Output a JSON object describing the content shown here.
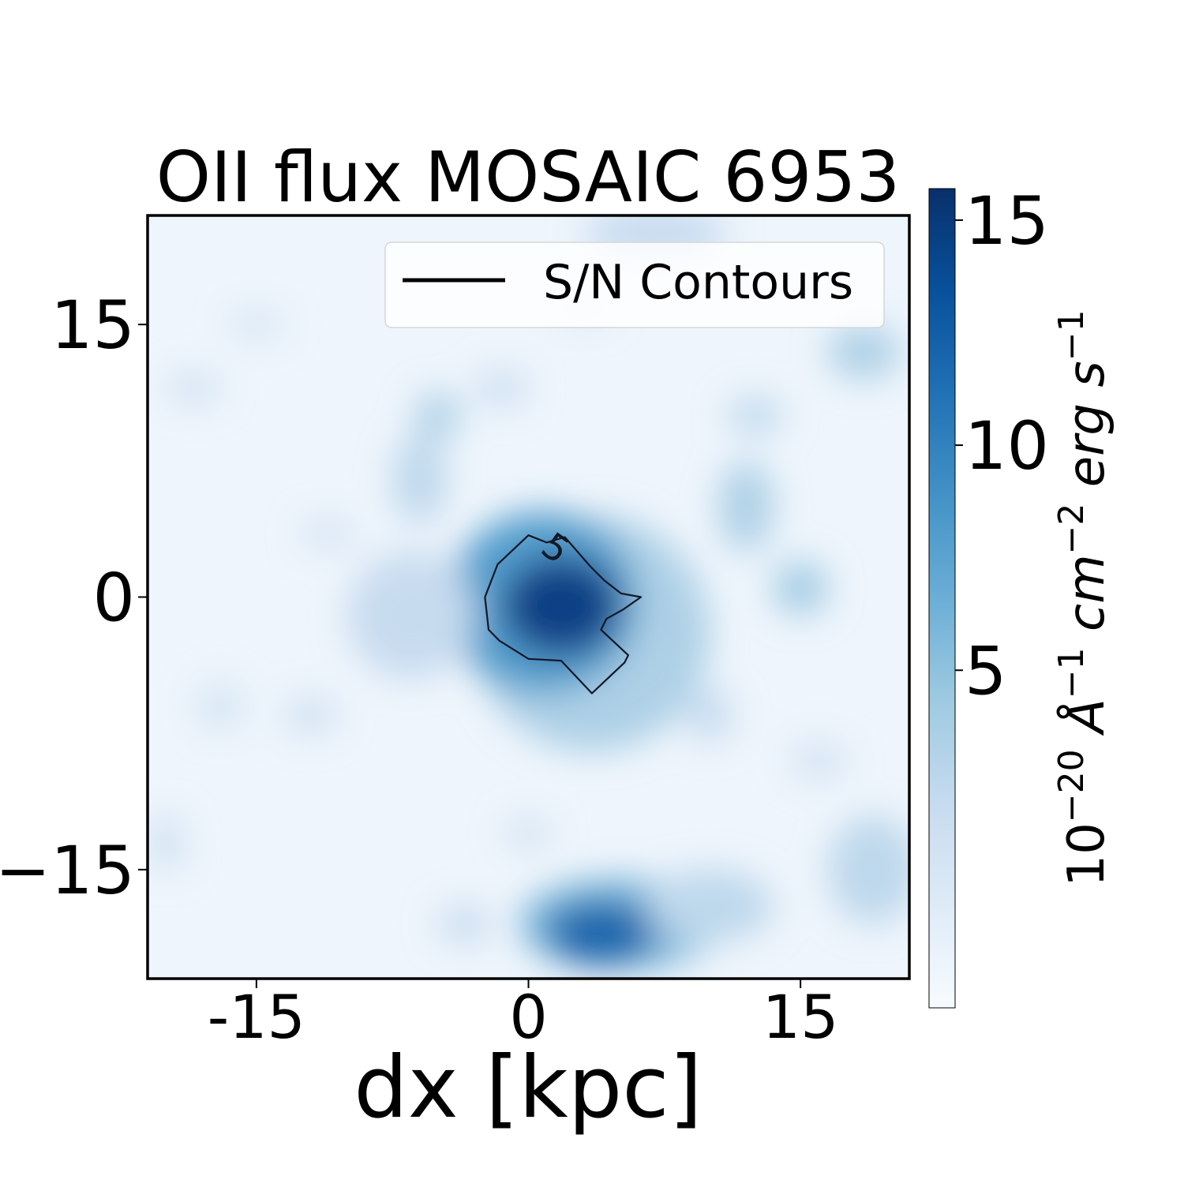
{
  "chart_data": {
    "type": "heatmap",
    "title": "OII flux MOSAIC 6953",
    "xlabel": "dx [kpc]",
    "ylabel": "",
    "xlim": [
      -21,
      21
    ],
    "ylim": [
      -21,
      21
    ],
    "xticks": [
      {
        "value": -15,
        "label": "-15"
      },
      {
        "value": 0,
        "label": "0"
      },
      {
        "value": 15,
        "label": "15"
      }
    ],
    "yticks": [
      {
        "value": 15,
        "label": "15"
      },
      {
        "value": 0,
        "label": "0"
      },
      {
        "value": -15,
        "label": "−15"
      }
    ],
    "colormap": "Blues",
    "colors": {
      "low": "#f7fbff",
      "mid": "#6baed6",
      "high": "#08306b"
    },
    "colorbar": {
      "label_parts": {
        "base": "10",
        "exp": "−20",
        "units": [
          {
            "text": "Å",
            "exp": "−1"
          },
          {
            "text": "cm",
            "exp": "−2"
          },
          {
            "text": "erg",
            "exp": ""
          },
          {
            "text": "s",
            "exp": "−1"
          }
        ]
      },
      "vmin": -2.5,
      "vmax": 15.7,
      "ticks": [
        {
          "value": 5,
          "label": "5"
        },
        {
          "value": 10,
          "label": "10"
        },
        {
          "value": 15,
          "label": "15"
        }
      ]
    },
    "legend": {
      "position": "upper-right",
      "entries": [
        {
          "label": "S/N Contours",
          "color": "#000000"
        }
      ]
    },
    "contours": [
      {
        "level_label": "5",
        "label_at": [
          1.5,
          2.7
        ],
        "points": [
          [
            0,
            3.4
          ],
          [
            -1.7,
            1.8
          ],
          [
            -2.4,
            0
          ],
          [
            -2.2,
            -1.8
          ],
          [
            -1.6,
            -2.4
          ],
          [
            0,
            -3.4
          ],
          [
            1.8,
            -3.5
          ],
          [
            3.5,
            -5.3
          ],
          [
            5.3,
            -3.6
          ],
          [
            5.5,
            -3.2
          ],
          [
            4,
            -1.8
          ],
          [
            4.3,
            -1.2
          ],
          [
            5.2,
            -0.7
          ],
          [
            6.2,
            0
          ],
          [
            5.1,
            0.2
          ],
          [
            4.2,
            0.9
          ],
          [
            3.4,
            1.7
          ],
          [
            2.7,
            2.5
          ],
          [
            2,
            3.3
          ],
          [
            1,
            3
          ]
        ]
      }
    ],
    "blobs": [
      {
        "x": 1.8,
        "y": -0.5,
        "w": 6.5,
        "h": 5.5,
        "value": 14.5
      },
      {
        "x": 0.8,
        "y": -0.3,
        "w": 10.5,
        "h": 10,
        "value": 8.0
      },
      {
        "x": 3.5,
        "y": -2.0,
        "w": 13,
        "h": 13,
        "value": 3.5
      },
      {
        "x": -6.5,
        "y": -1.0,
        "w": 7,
        "h": 7,
        "value": 2.0
      },
      {
        "x": 4.0,
        "y": -18.5,
        "w": 6,
        "h": 3.5,
        "value": 12.0
      },
      {
        "x": 5.0,
        "y": -18.0,
        "w": 11,
        "h": 5,
        "value": 6.0
      },
      {
        "x": 10.0,
        "y": -17.0,
        "w": 7,
        "h": 4,
        "value": 2.5
      },
      {
        "x": -5.0,
        "y": 10.0,
        "w": 2.5,
        "h": 2.5,
        "value": 3.5
      },
      {
        "x": -6.0,
        "y": 6.5,
        "w": 3,
        "h": 5,
        "value": 2.5
      },
      {
        "x": 12.0,
        "y": 5.0,
        "w": 3,
        "h": 5,
        "value": 3.5
      },
      {
        "x": 15.0,
        "y": 0.5,
        "w": 3,
        "h": 3,
        "value": 4.0
      },
      {
        "x": 12.5,
        "y": 10.0,
        "w": 3,
        "h": 2,
        "value": 2.5
      },
      {
        "x": 18.5,
        "y": 13.5,
        "w": 4,
        "h": 3,
        "value": 3.5
      },
      {
        "x": 19.0,
        "y": -15.0,
        "w": 5,
        "h": 6,
        "value": 2.5
      },
      {
        "x": 7.0,
        "y": 20.0,
        "w": 8,
        "h": 3,
        "value": 2.0
      },
      {
        "x": -1.5,
        "y": 11.5,
        "w": 3,
        "h": 2,
        "value": 1.5
      },
      {
        "x": -18.5,
        "y": 11.5,
        "w": 3,
        "h": 1.5,
        "value": 1.5
      },
      {
        "x": -12.0,
        "y": -6.5,
        "w": 3,
        "h": 2,
        "value": 1.2
      },
      {
        "x": -20.0,
        "y": -13.5,
        "w": 2,
        "h": 3,
        "value": 1.2
      },
      {
        "x": 10.0,
        "y": -6.5,
        "w": 2.5,
        "h": 3,
        "value": 2.0
      },
      {
        "x": -3.5,
        "y": -18.0,
        "w": 3,
        "h": 2,
        "value": 2.0
      },
      {
        "x": 0.0,
        "y": -13.0,
        "w": 2.5,
        "h": 1.5,
        "value": 1.5
      },
      {
        "x": -11.0,
        "y": 3.5,
        "w": 3,
        "h": 1.5,
        "value": 1.0
      },
      {
        "x": 16.0,
        "y": -9.0,
        "w": 3,
        "h": 2,
        "value": 1.0
      },
      {
        "x": -15.0,
        "y": 15.0,
        "w": 3,
        "h": 1.5,
        "value": 0.8
      },
      {
        "x": 3.0,
        "y": 16.0,
        "w": 3,
        "h": 1.5,
        "value": 0.8
      },
      {
        "x": -17.0,
        "y": -6.0,
        "w": 2.5,
        "h": 2.5,
        "value": 0.8
      }
    ]
  }
}
